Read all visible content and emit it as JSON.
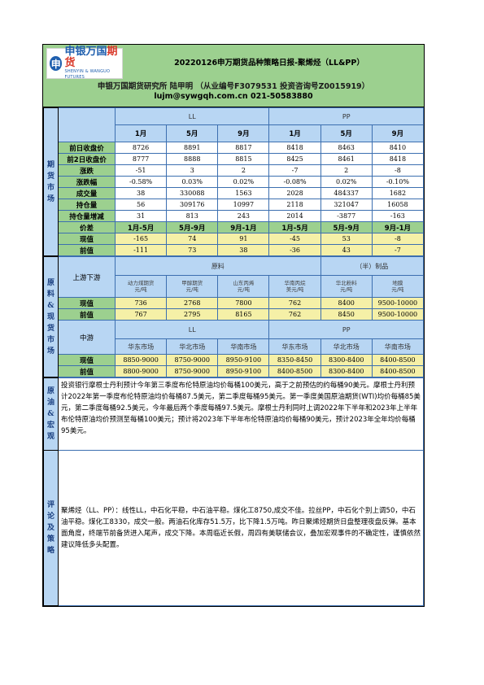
{
  "header": {
    "logo_cn_a": "申银万国",
    "logo_cn_b": "期货",
    "logo_en": "SHENYIN & WANGUO FUTURES",
    "title": "20220126申万期货品种策略日报-聚烯烃（LL&PP）",
    "org_line": "申银万国期货研究所 陆甲明 （从业编号F3079531 投资咨询号Z0015919）",
    "contact_line": "lujm@sywgqh.com.cn 021-50583880"
  },
  "futures": {
    "section_label": "期货市场",
    "group_ll": "LL",
    "group_pp": "PP",
    "months": [
      "1月",
      "5月",
      "9月",
      "1月",
      "5月",
      "9月"
    ],
    "rows": [
      {
        "label": "前日收盘价",
        "values": [
          "8726",
          "8891",
          "8817",
          "8418",
          "8463",
          "8410"
        ]
      },
      {
        "label": "前2日收盘价",
        "values": [
          "8777",
          "8888",
          "8815",
          "8425",
          "8461",
          "8418"
        ]
      },
      {
        "label": "涨跌",
        "values": [
          "-51",
          "3",
          "2",
          "-7",
          "2",
          "-8"
        ]
      },
      {
        "label": "涨跌幅",
        "values": [
          "-0.58%",
          "0.03%",
          "0.02%",
          "-0.08%",
          "0.02%",
          "-0.10%"
        ]
      },
      {
        "label": "成交量",
        "values": [
          "38",
          "330088",
          "1563",
          "2028",
          "484337",
          "1682"
        ]
      },
      {
        "label": "持仓量",
        "values": [
          "56",
          "309176",
          "10997",
          "2118",
          "321047",
          "16058"
        ]
      },
      {
        "label": "持仓量增减",
        "values": [
          "31",
          "813",
          "243",
          "2014",
          "-3877",
          "-163"
        ]
      }
    ],
    "spread_header": {
      "label": "价差",
      "values": [
        "1月-5月",
        "5月-9月",
        "9月-1月",
        "1月-5月",
        "5月-9月",
        "9月-1月"
      ]
    },
    "spread_rows": [
      {
        "label": "现值",
        "values": [
          "-165",
          "74",
          "91",
          "-45",
          "53",
          "-8"
        ]
      },
      {
        "label": "前值",
        "values": [
          "-111",
          "73",
          "38",
          "-36",
          "43",
          "-7"
        ]
      }
    ]
  },
  "spot": {
    "section_label": "原料&现货市场",
    "upstream_label": "上游下游",
    "raw_label": "原料",
    "product_label": "（半）制品",
    "raw_cols": [
      "动力煤期货\n元/吨",
      "甲醇期货\n元/吨",
      "山东丙烯\n元/吨",
      "华南丙烷\n美元/吨",
      "华北粉料\n元/吨",
      "地膜\n元/吨"
    ],
    "raw_rows": [
      {
        "label": "现值",
        "values": [
          "736",
          "2768",
          "7800",
          "762",
          "8400",
          "9500-10000"
        ]
      },
      {
        "label": "前值",
        "values": [
          "767",
          "2795",
          "8165",
          "762",
          "8450",
          "9500-10000"
        ]
      }
    ],
    "mid_label": "中游",
    "mid_ll": "LL",
    "mid_pp": "PP",
    "mid_cols": [
      "华东市场",
      "华北市场",
      "华南市场",
      "华东市场",
      "华北市场",
      "华南市场"
    ],
    "mid_rows": [
      {
        "label": "现值",
        "values": [
          "8850-9000",
          "8750-9000",
          "8950-9100",
          "8350-8450",
          "8300-8400",
          "8400-8500"
        ]
      },
      {
        "label": "前值",
        "values": [
          "8800-9000",
          "8750-9000",
          "8950-9100",
          "8400-8500",
          "8300-8400",
          "8400-8500"
        ]
      }
    ]
  },
  "macro": {
    "section_label": "原油&宏观",
    "text": "投资银行摩根士丹利预计今年第三季度布伦特原油均价每桶100美元，高于之前预估的约每桶90美元。摩根士丹利预计2022年第一季度布伦特原油均价每桶87.5美元，第二季度每桶95美元。第一季度美国原油期货(WTI)均价每桶85美元，第二季度每桶92.5美元，今年最后两个季度每桶97.5美元。摩根士丹利同时上调2022年下半年和2023年上半年布伦特原油均价预测至每桶100美元；预计将2023年下半年布伦特原油均价每桶90美元，预计2023年全年均价每桶95美元。"
  },
  "comment": {
    "section_label": "评论及策略",
    "text": "聚烯烃（LL、PP）：线性LL，中石化平稳，中石油平稳。煤化工8750,成交不佳。拉丝PP，中石化个别上调50，中石油平稳。煤化工8330，成交一般。两油石化库存51.5万，比下降1.5万吨。昨日聚烯烃期货日盘整理夜盘反弹。基本面角度，终端节前备货进入尾声，成交下降。本周临近长假，周四有美联储会议，叠加宏观事件的不确定性，谨慎依然建议降低多头配置。"
  }
}
